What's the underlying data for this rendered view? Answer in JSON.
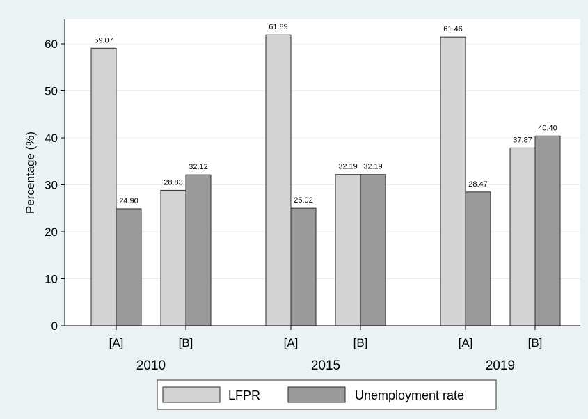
{
  "chart_data": {
    "type": "bar",
    "ylabel": "Percentage (%)",
    "xlabel": "",
    "ylim": [
      0,
      65
    ],
    "yticks": [
      0,
      10,
      20,
      30,
      40,
      50,
      60
    ],
    "grid": true,
    "legend_position": "bottom",
    "groups": [
      {
        "year": "2010",
        "subgroups": [
          {
            "label": "[A]",
            "values": [
              59.07,
              24.9
            ],
            "labels": [
              "59.07",
              "24.90"
            ]
          },
          {
            "label": "[B]",
            "values": [
              28.83,
              32.12
            ],
            "labels": [
              "28.83",
              "32.12"
            ]
          }
        ]
      },
      {
        "year": "2015",
        "subgroups": [
          {
            "label": "[A]",
            "values": [
              61.89,
              25.02
            ],
            "labels": [
              "61.89",
              "25.02"
            ]
          },
          {
            "label": "[B]",
            "values": [
              32.19,
              32.19
            ],
            "labels": [
              "32.19",
              "32.19"
            ]
          }
        ]
      },
      {
        "year": "2019",
        "subgroups": [
          {
            "label": "[A]",
            "values": [
              61.46,
              28.47
            ],
            "labels": [
              "61.46",
              "28.47"
            ]
          },
          {
            "label": "[B]",
            "values": [
              37.87,
              40.4
            ],
            "labels": [
              "37.87",
              "40.40"
            ]
          }
        ]
      }
    ],
    "series": [
      {
        "name": "LFPR",
        "color": "#d3d3d3"
      },
      {
        "name": "Unemployment rate",
        "color": "#9b9b9b"
      }
    ]
  },
  "colors": {
    "page_background": "#eaf2f3",
    "plot_background": "#ffffff",
    "gridline": "#e8efef",
    "bar_outline": "#2b2b2b"
  }
}
